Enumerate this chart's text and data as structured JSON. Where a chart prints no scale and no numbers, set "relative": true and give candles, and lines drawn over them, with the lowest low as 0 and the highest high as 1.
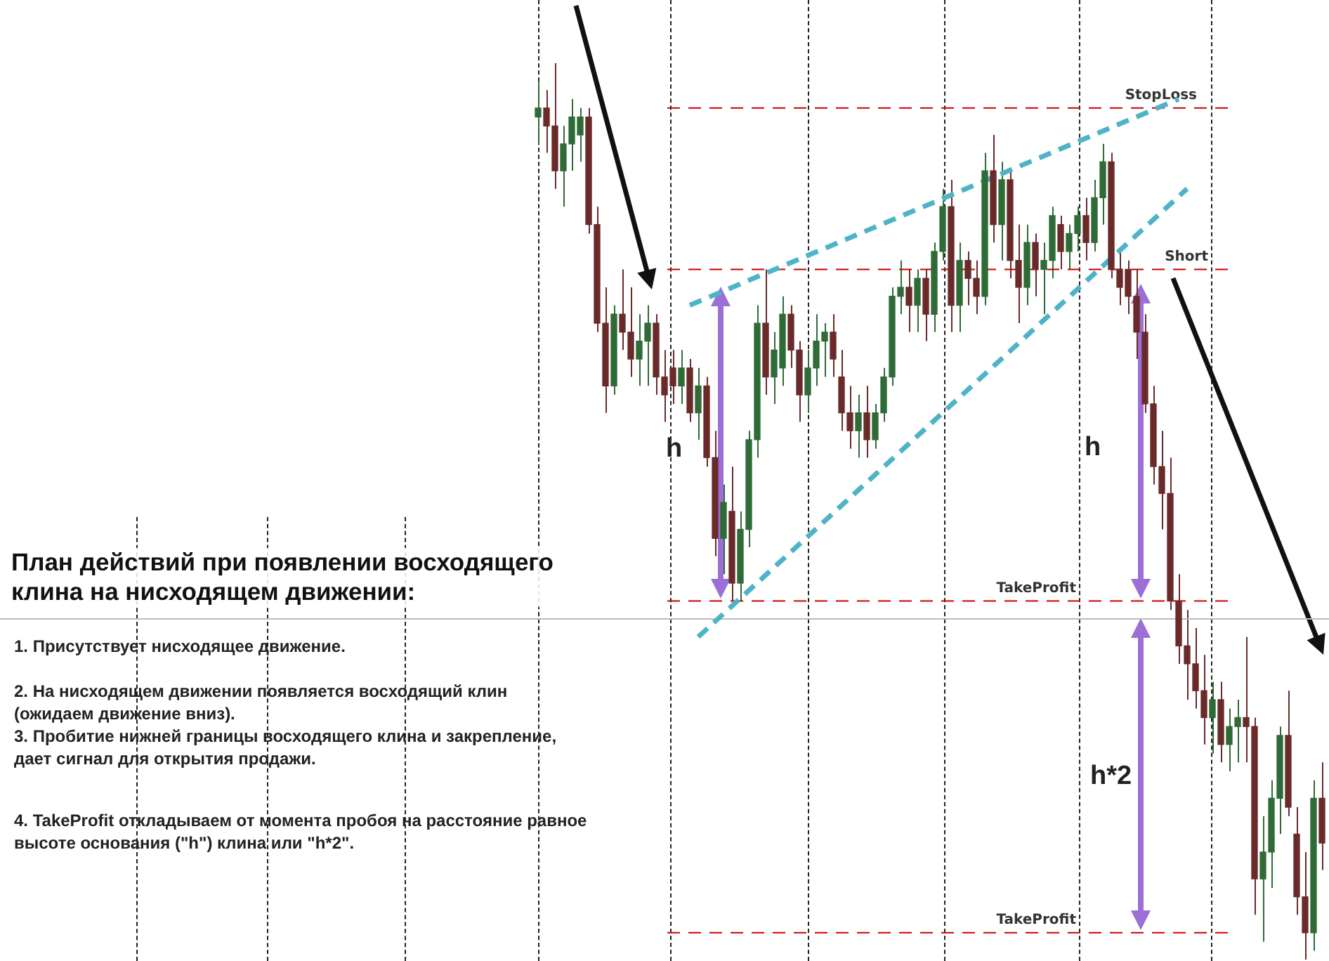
{
  "chart_data": {
    "type": "candlestick",
    "title": "План действий при появлении восходящего клина на нисходящем движении:",
    "relative": true,
    "categories": [
      null,
      null,
      null,
      null,
      null,
      null,
      null,
      null,
      null,
      null,
      null,
      null,
      null,
      null,
      null,
      null,
      null,
      null,
      null,
      null,
      null,
      null,
      null,
      null,
      null,
      null,
      null,
      null,
      null,
      null,
      null,
      null,
      null,
      null,
      null,
      null,
      null,
      null,
      null,
      null,
      null,
      null,
      null,
      null,
      null,
      null,
      null,
      null,
      null,
      null,
      null,
      null,
      null,
      null,
      null,
      null,
      null,
      null,
      null,
      null,
      null,
      null,
      null,
      null,
      null,
      null,
      null,
      null,
      null,
      null,
      null,
      null,
      null,
      null,
      null,
      null,
      null,
      null,
      null,
      null,
      null,
      null,
      null,
      null,
      null,
      null,
      null,
      null,
      null,
      null,
      null,
      null,
      null,
      null
    ],
    "ohlc": [
      [
        0.94,
        0.98,
        0.91,
        0.95
      ],
      [
        0.95,
        0.97,
        0.9,
        0.93
      ],
      [
        0.93,
        1.0,
        0.86,
        0.88
      ],
      [
        0.88,
        0.93,
        0.84,
        0.91
      ],
      [
        0.91,
        0.96,
        0.88,
        0.94
      ],
      [
        0.92,
        0.95,
        0.89,
        0.94
      ],
      [
        0.94,
        0.95,
        0.81,
        0.82
      ],
      [
        0.82,
        0.84,
        0.7,
        0.71
      ],
      [
        0.71,
        0.75,
        0.61,
        0.64
      ],
      [
        0.64,
        0.73,
        0.63,
        0.72
      ],
      [
        0.72,
        0.77,
        0.68,
        0.7
      ],
      [
        0.7,
        0.75,
        0.65,
        0.67
      ],
      [
        0.67,
        0.72,
        0.64,
        0.69
      ],
      [
        0.69,
        0.73,
        0.64,
        0.71
      ],
      [
        0.71,
        0.72,
        0.63,
        0.65
      ],
      [
        0.65,
        0.68,
        0.6,
        0.63
      ],
      [
        0.66,
        0.68,
        0.62,
        0.64
      ],
      [
        0.64,
        0.68,
        0.62,
        0.66
      ],
      [
        0.66,
        0.67,
        0.6,
        0.61
      ],
      [
        0.61,
        0.66,
        0.58,
        0.64
      ],
      [
        0.64,
        0.65,
        0.55,
        0.56
      ],
      [
        0.56,
        0.59,
        0.45,
        0.47
      ],
      [
        0.47,
        0.53,
        0.43,
        0.51
      ],
      [
        0.5,
        0.55,
        0.4,
        0.42
      ],
      [
        0.42,
        0.5,
        0.4,
        0.48
      ],
      [
        0.48,
        0.59,
        0.46,
        0.58
      ],
      [
        0.58,
        0.73,
        0.56,
        0.71
      ],
      [
        0.71,
        0.77,
        0.63,
        0.65
      ],
      [
        0.65,
        0.7,
        0.62,
        0.68
      ],
      [
        0.66,
        0.74,
        0.64,
        0.72
      ],
      [
        0.72,
        0.73,
        0.66,
        0.68
      ],
      [
        0.68,
        0.69,
        0.6,
        0.63
      ],
      [
        0.63,
        0.68,
        0.61,
        0.66
      ],
      [
        0.66,
        0.72,
        0.64,
        0.69
      ],
      [
        0.69,
        0.71,
        0.65,
        0.7
      ],
      [
        0.7,
        0.72,
        0.65,
        0.67
      ],
      [
        0.65,
        0.68,
        0.59,
        0.61
      ],
      [
        0.61,
        0.64,
        0.57,
        0.59
      ],
      [
        0.59,
        0.63,
        0.56,
        0.61
      ],
      [
        0.61,
        0.64,
        0.56,
        0.58
      ],
      [
        0.58,
        0.62,
        0.57,
        0.61
      ],
      [
        0.61,
        0.66,
        0.6,
        0.65
      ],
      [
        0.65,
        0.75,
        0.64,
        0.74
      ],
      [
        0.74,
        0.78,
        0.72,
        0.75
      ],
      [
        0.75,
        0.77,
        0.7,
        0.73
      ],
      [
        0.73,
        0.77,
        0.7,
        0.76
      ],
      [
        0.76,
        0.77,
        0.69,
        0.72
      ],
      [
        0.72,
        0.8,
        0.7,
        0.79
      ],
      [
        0.79,
        0.86,
        0.78,
        0.84
      ],
      [
        0.84,
        0.87,
        0.7,
        0.73
      ],
      [
        0.73,
        0.8,
        0.7,
        0.78
      ],
      [
        0.78,
        0.79,
        0.73,
        0.76
      ],
      [
        0.76,
        0.78,
        0.72,
        0.74
      ],
      [
        0.74,
        0.9,
        0.73,
        0.88
      ],
      [
        0.88,
        0.92,
        0.8,
        0.82
      ],
      [
        0.82,
        0.89,
        0.78,
        0.87
      ],
      [
        0.87,
        0.88,
        0.76,
        0.78
      ],
      [
        0.78,
        0.82,
        0.71,
        0.75
      ],
      [
        0.75,
        0.82,
        0.73,
        0.8
      ],
      [
        0.8,
        0.81,
        0.74,
        0.77
      ],
      [
        0.77,
        0.8,
        0.72,
        0.78
      ],
      [
        0.78,
        0.84,
        0.76,
        0.83
      ],
      [
        0.82,
        0.83,
        0.77,
        0.79
      ],
      [
        0.79,
        0.82,
        0.77,
        0.81
      ],
      [
        0.81,
        0.84,
        0.79,
        0.83
      ],
      [
        0.83,
        0.85,
        0.78,
        0.8
      ],
      [
        0.8,
        0.87,
        0.79,
        0.85
      ],
      [
        0.85,
        0.91,
        0.82,
        0.89
      ],
      [
        0.89,
        0.9,
        0.76,
        0.77
      ],
      [
        0.77,
        0.79,
        0.73,
        0.75
      ],
      [
        0.77,
        0.78,
        0.72,
        0.74
      ],
      [
        0.74,
        0.77,
        0.67,
        0.7
      ],
      [
        0.7,
        0.72,
        0.61,
        0.62
      ],
      [
        0.62,
        0.64,
        0.53,
        0.55
      ],
      [
        0.55,
        0.59,
        0.48,
        0.52
      ],
      [
        0.52,
        0.56,
        0.39,
        0.4
      ],
      [
        0.4,
        0.43,
        0.33,
        0.35
      ],
      [
        0.35,
        0.39,
        0.29,
        0.33
      ],
      [
        0.33,
        0.37,
        0.28,
        0.3
      ],
      [
        0.3,
        0.34,
        0.24,
        0.27
      ],
      [
        0.27,
        0.31,
        0.23,
        0.29
      ],
      [
        0.29,
        0.31,
        0.22,
        0.24
      ],
      [
        0.24,
        0.28,
        0.21,
        0.26
      ],
      [
        0.26,
        0.29,
        0.22,
        0.27
      ],
      [
        0.27,
        0.36,
        0.22,
        0.26
      ],
      [
        0.26,
        0.27,
        0.05,
        0.09
      ],
      [
        0.09,
        0.16,
        0.02,
        0.12
      ],
      [
        0.12,
        0.2,
        0.08,
        0.18
      ],
      [
        0.18,
        0.26,
        0.14,
        0.25
      ],
      [
        0.25,
        0.3,
        0.16,
        0.17
      ],
      [
        0.14,
        0.17,
        0.05,
        0.07
      ],
      [
        0.07,
        0.12,
        0.0,
        0.03
      ],
      [
        0.03,
        0.2,
        0.01,
        0.18
      ],
      [
        0.18,
        0.22,
        0.1,
        0.13
      ]
    ],
    "colors": [
      "#2e6b36",
      "#6b2a2a",
      "#6b2a2a",
      "#2e6b36",
      "#2e6b36",
      "#2e6b36",
      "#6b2a2a",
      "#6b2a2a",
      "#6b2a2a",
      "#2e6b36",
      "#6b2a2a",
      "#6b2a2a",
      "#2e6b36",
      "#2e6b36",
      "#6b2a2a",
      "#6b2a2a",
      "#6b2a2a",
      "#2e6b36",
      "#6b2a2a",
      "#2e6b36",
      "#6b2a2a",
      "#6b2a2a",
      "#2e6b36",
      "#6b2a2a",
      "#2e6b36",
      "#2e6b36",
      "#2e6b36",
      "#6b2a2a",
      "#2e6b36",
      "#2e6b36",
      "#6b2a2a",
      "#6b2a2a",
      "#2e6b36",
      "#2e6b36",
      "#2e6b36",
      "#6b2a2a",
      "#6b2a2a",
      "#6b2a2a",
      "#2e6b36",
      "#6b2a2a",
      "#2e6b36",
      "#2e6b36",
      "#2e6b36",
      "#2e6b36",
      "#6b2a2a",
      "#2e6b36",
      "#6b2a2a",
      "#2e6b36",
      "#2e6b36",
      "#6b2a2a",
      "#2e6b36",
      "#6b2a2a",
      "#6b2a2a",
      "#2e6b36",
      "#6b2a2a",
      "#2e6b36",
      "#6b2a2a",
      "#6b2a2a",
      "#2e6b36",
      "#6b2a2a",
      "#2e6b36",
      "#2e6b36",
      "#6b2a2a",
      "#2e6b36",
      "#2e6b36",
      "#6b2a2a",
      "#2e6b36",
      "#2e6b36",
      "#6b2a2a",
      "#6b2a2a",
      "#6b2a2a",
      "#6b2a2a",
      "#6b2a2a",
      "#6b2a2a",
      "#6b2a2a",
      "#6b2a2a",
      "#6b2a2a",
      "#6b2a2a",
      "#6b2a2a",
      "#6b2a2a",
      "#2e6b36",
      "#6b2a2a",
      "#2e6b36",
      "#2e6b36",
      "#6b2a2a",
      "#6b2a2a",
      "#2e6b36",
      "#2e6b36",
      "#2e6b36",
      "#6b2a2a",
      "#6b2a2a",
      "#6b2a2a",
      "#2e6b36",
      "#6b2a2a"
    ],
    "grid": "x",
    "series": [
      {
        "type": "line",
        "color": "#4fb3c8",
        "line_style": "dashed",
        "values": [
          null,
          null,
          null,
          null,
          null,
          null,
          null,
          null,
          null,
          null,
          null,
          null,
          null,
          null,
          null,
          null,
          null,
          null,
          0.73,
          null,
          null,
          null,
          null,
          null,
          null,
          null,
          null,
          null,
          null,
          null,
          null,
          null,
          null,
          null,
          null,
          null,
          null,
          null,
          null,
          null,
          null,
          null,
          null,
          null,
          null,
          null,
          null,
          null,
          null,
          null,
          null,
          null,
          null,
          null,
          null,
          null,
          null,
          null,
          null,
          null,
          null,
          null,
          null,
          null,
          null,
          null,
          null,
          null,
          null,
          null,
          null,
          null,
          null,
          null,
          null,
          null,
          0.96,
          null,
          null,
          null,
          null,
          null,
          null,
          null,
          null,
          null,
          null,
          null,
          null,
          null,
          null,
          null,
          null,
          null
        ]
      },
      {
        "type": "line",
        "color": "#4fb3c8",
        "line_style": "dashed",
        "values": [
          null,
          null,
          null,
          null,
          null,
          null,
          null,
          null,
          null,
          null,
          null,
          null,
          null,
          null,
          null,
          null,
          null,
          null,
          null,
          0.36,
          null,
          null,
          null,
          null,
          null,
          null,
          null,
          null,
          null,
          null,
          null,
          null,
          null,
          null,
          null,
          null,
          null,
          null,
          null,
          null,
          null,
          null,
          null,
          null,
          null,
          null,
          null,
          null,
          null,
          null,
          null,
          null,
          null,
          null,
          null,
          null,
          null,
          null,
          null,
          null,
          null,
          null,
          null,
          null,
          null,
          null,
          null,
          null,
          null,
          null,
          null,
          null,
          null,
          null,
          null,
          null,
          null,
          0.86,
          null,
          null,
          null,
          null,
          null,
          null,
          null,
          null,
          null,
          null,
          null,
          null,
          null,
          null,
          null,
          null
        ]
      }
    ],
    "ref_lines": [
      {
        "axis": "y",
        "value": 0.95,
        "label": "StopLoss",
        "color": "#cc0000",
        "line_style": "dashed"
      },
      {
        "axis": "y",
        "value": 0.77,
        "label": "Short",
        "color": "#cc0000",
        "line_style": "dashed"
      },
      {
        "axis": "y",
        "value": 0.4,
        "label": "TakeProfit",
        "color": "#cc0000",
        "line_style": "dashed"
      },
      {
        "axis": "y",
        "value": 0.03,
        "label": "TakeProfit",
        "color": "#cc0000",
        "line_style": "dashed"
      },
      {
        "axis": "y",
        "value": 0.38,
        "color": "#bbbbbb",
        "line_style": "solid"
      }
    ],
    "annotations": [
      "1. Присутствует нисходящее движение.",
      "2. На нисходящем движении появляется восходящий клин (ожидаем движение вниз).",
      "3. Пробитие нижней границы восходящего клина и закрепление, дает сигнал для открытия продажи.",
      "4. TakeProfit откладываем от момента пробоя на расстояние равное высоте основания (\"h\") клина или \"h*2\".",
      "h",
      "h",
      "h*2"
    ]
  }
}
